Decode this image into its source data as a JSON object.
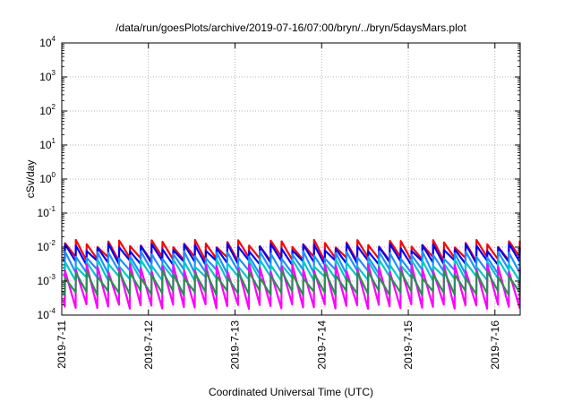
{
  "chart_data": {
    "type": "line",
    "title": "/data/run/goesPlots/archive/2019-07-16/07:00/bryn/../bryn/5daysMars.plot",
    "xlabel": "Coordinated Universal Time (UTC)",
    "ylabel": "cSv/day",
    "x_ticks": [
      "2019-7-11",
      "2019-7-12",
      "2019-7-13",
      "2019-7-14",
      "2019-7-15",
      "2019-7-16"
    ],
    "x_range": [
      "2019-07-11T00:00",
      "2019-07-16T07:00"
    ],
    "y_scale": "log",
    "ylim": [
      0.0001,
      10000
    ],
    "y_ticks": [
      {
        "base": "10",
        "exp": "-4"
      },
      {
        "base": "10",
        "exp": "-3"
      },
      {
        "base": "10",
        "exp": "-2"
      },
      {
        "base": "10",
        "exp": "-1"
      },
      {
        "base": "10",
        "exp": "0"
      },
      {
        "base": "10",
        "exp": "1"
      },
      {
        "base": "10",
        "exp": "2"
      },
      {
        "base": "10",
        "exp": "3"
      },
      {
        "base": "10",
        "exp": "4"
      }
    ],
    "grid": true,
    "legend": "none",
    "sawtooth_period_hours": 3,
    "series": [
      {
        "color": "#ff0000",
        "peak": 0.013,
        "trough": 0.0045
      },
      {
        "color": "#0000ff",
        "peak": 0.01,
        "trough": 0.0035
      },
      {
        "color": "#1e90ff",
        "peak": 0.006,
        "trough": 0.0019
      },
      {
        "color": "#00c8c8",
        "peak": 0.0035,
        "trough": 0.0012
      },
      {
        "color": "#ff00ff",
        "peak": 0.0025,
        "trough": 0.00018
      },
      {
        "color": "#2e8b57",
        "peak": 0.0016,
        "trough": 0.00045
      }
    ]
  }
}
